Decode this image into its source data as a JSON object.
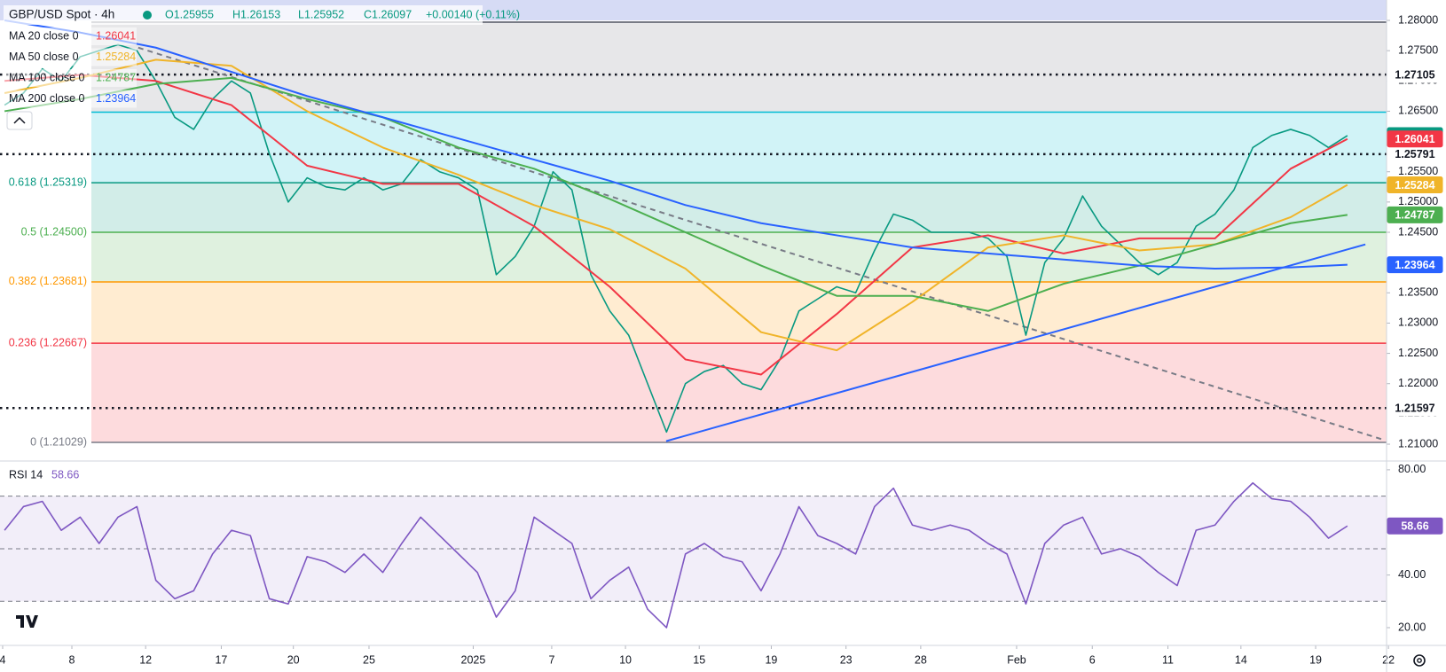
{
  "header": {
    "symbol": "GBP/USD Spot · 4h",
    "open": "O1.25955",
    "high": "H1.26153",
    "low": "L1.25952",
    "close": "C1.26097",
    "change": "+0.00140 (+0.11%)"
  },
  "chart_data": [
    {
      "type": "line",
      "xlim": [
        -0.24,
        73.07
      ],
      "ylim": [
        1.20722,
        1.28337
      ],
      "yticks": [
        {
          "value": 1.21,
          "label": "1.21000"
        },
        {
          "value": 1.215,
          "label": "1.21500"
        },
        {
          "value": 1.22,
          "label": "1.22000"
        },
        {
          "value": 1.225,
          "label": "1.22500"
        },
        {
          "value": 1.23,
          "label": "1.23000"
        },
        {
          "value": 1.235,
          "label": "1.23500"
        },
        {
          "value": 1.24,
          "label": "1.24000"
        },
        {
          "value": 1.245,
          "label": "1.24500"
        },
        {
          "value": 1.25,
          "label": "1.25000"
        },
        {
          "value": 1.255,
          "label": "1.25500"
        },
        {
          "value": 1.26,
          "label": "1.26000"
        },
        {
          "value": 1.265,
          "label": "1.26500"
        },
        {
          "value": 1.27,
          "label": "1.27000"
        },
        {
          "value": 1.275,
          "label": "1.27500"
        },
        {
          "value": 1.28,
          "label": "1.28000"
        }
      ],
      "series": [
        {
          "name": "GBP/USD Spot",
          "color": "#089981",
          "values": [
            1.266,
            1.268,
            1.272,
            1.27,
            1.274,
            1.275,
            1.276,
            1.275,
            1.27,
            1.264,
            1.262,
            1.267,
            1.27,
            1.268,
            1.258,
            1.25,
            1.254,
            1.2525,
            1.252,
            1.254,
            1.252,
            1.253,
            1.257,
            1.255,
            1.254,
            1.252,
            1.238,
            1.241,
            1.246,
            1.255,
            1.252,
            1.238,
            1.232,
            1.228,
            1.22,
            1.212,
            1.22,
            1.222,
            1.223,
            1.22,
            1.219,
            1.224,
            1.232,
            1.234,
            1.236,
            1.235,
            1.242,
            1.248,
            1.247,
            1.245,
            1.245,
            1.245,
            1.244,
            1.241,
            1.228,
            1.24,
            1.244,
            1.251,
            1.246,
            1.243,
            1.24,
            1.238,
            1.24,
            1.246,
            1.248,
            1.252,
            1.259,
            1.261,
            1.262,
            1.261,
            1.259,
            1.26097
          ]
        },
        {
          "name": "MA 20 close 0",
          "color": "#f23645",
          "x": [
            0,
            4,
            8,
            12,
            16,
            20,
            24,
            28,
            32,
            36,
            40,
            44,
            48,
            52,
            56,
            60,
            64,
            68,
            71
          ],
          "values": [
            1.27,
            1.271,
            1.27,
            1.266,
            1.256,
            1.253,
            1.253,
            1.246,
            1.236,
            1.224,
            1.2215,
            1.2315,
            1.2425,
            1.2445,
            1.2415,
            1.244,
            1.244,
            1.2555,
            1.26041
          ]
        },
        {
          "name": "MA 50 close 0",
          "color": "#f0b429",
          "x": [
            0,
            4,
            8,
            12,
            16,
            20,
            24,
            28,
            32,
            36,
            40,
            44,
            48,
            52,
            56,
            60,
            64,
            68,
            71
          ],
          "values": [
            1.268,
            1.2705,
            1.2735,
            1.2725,
            1.265,
            1.259,
            1.2545,
            1.2495,
            1.2455,
            1.239,
            1.2285,
            1.2255,
            1.2335,
            1.2425,
            1.2445,
            1.242,
            1.243,
            1.2475,
            1.25284
          ]
        },
        {
          "name": "MA 100 close 0",
          "color": "#4caf50",
          "x": [
            0,
            4,
            8,
            12,
            16,
            20,
            24,
            28,
            32,
            36,
            40,
            44,
            48,
            52,
            56,
            60,
            64,
            68,
            71
          ],
          "values": [
            1.265,
            1.267,
            1.2695,
            1.2705,
            1.267,
            1.264,
            1.259,
            1.2555,
            1.2505,
            1.245,
            1.2395,
            1.2345,
            1.2345,
            1.232,
            1.2365,
            1.2395,
            1.243,
            1.2465,
            1.24787
          ]
        },
        {
          "name": "MA 200 close 0",
          "color": "#2962ff",
          "x": [
            0,
            4,
            8,
            12,
            16,
            20,
            24,
            28,
            32,
            36,
            40,
            44,
            48,
            52,
            56,
            60,
            64,
            68,
            71
          ],
          "values": [
            1.28,
            1.278,
            1.2755,
            1.2715,
            1.2675,
            1.264,
            1.2605,
            1.257,
            1.2535,
            1.2495,
            1.2465,
            1.2445,
            1.2425,
            1.2415,
            1.2405,
            1.2395,
            1.239,
            1.2392,
            1.23964
          ]
        }
      ],
      "fib": {
        "levels": [
          1.21029,
          1.22667,
          1.23681,
          1.245,
          1.25319,
          1.26485,
          1.27971
        ],
        "labels": [
          "0 (1.21029)",
          "0.236 (1.22667)",
          "0.382 (1.23681)",
          "0.5 (1.24500)",
          "0.618 (1.25319)",
          null,
          null
        ],
        "colors": [
          "#787b86",
          "#f23645",
          "#ff9800",
          "#4caf50",
          "#089981",
          "#00bcd4",
          "#787b86"
        ]
      },
      "hlines": {
        "values": [
          1.27105,
          1.25791,
          1.21597
        ],
        "color": "#131722"
      },
      "trendlines": [
        {
          "x": [
            7.07,
            72.93
          ],
          "values": [
            1.2755,
            1.2107
          ],
          "color": "#787b86",
          "dashed": true
        },
        {
          "x": [
            34.98,
            71.95
          ],
          "values": [
            1.2105,
            1.243
          ],
          "color": "#2962ff",
          "dashed": false
        }
      ]
    },
    {
      "type": "line",
      "xlim": [
        -0.24,
        73.07
      ],
      "xticks": [
        {
          "value": -0.1,
          "label": "4"
        },
        {
          "value": 3.56,
          "label": "8"
        },
        {
          "value": 7.46,
          "label": "12"
        },
        {
          "value": 11.46,
          "label": "17"
        },
        {
          "value": 15.27,
          "label": "20"
        },
        {
          "value": 19.27,
          "label": "25"
        },
        {
          "value": 24.78,
          "label": "2025"
        },
        {
          "value": 28.93,
          "label": "7"
        },
        {
          "value": 32.83,
          "label": "10"
        },
        {
          "value": 36.73,
          "label": "15"
        },
        {
          "value": 40.54,
          "label": "19"
        },
        {
          "value": 44.49,
          "label": "23"
        },
        {
          "value": 48.44,
          "label": "28"
        },
        {
          "value": 53.51,
          "label": "Feb"
        },
        {
          "value": 57.51,
          "label": "6"
        },
        {
          "value": 61.51,
          "label": "11"
        },
        {
          "value": 65.37,
          "label": "14"
        },
        {
          "value": 69.32,
          "label": "19"
        },
        {
          "value": 73.17,
          "label": "22"
        }
      ],
      "ylim": [
        14.6,
        83.0
      ],
      "yticks": [
        {
          "value": 20,
          "label": "20.00"
        },
        {
          "value": 40,
          "label": "40.00"
        },
        {
          "value": 80,
          "label": "80.00"
        }
      ],
      "levels": [
        30,
        50,
        70
      ],
      "band": [
        30,
        70
      ],
      "series": [
        {
          "name": "RSI 14",
          "color": "#7e57c2",
          "values": [
            57,
            66,
            68,
            57,
            62,
            52,
            62,
            66,
            38,
            31,
            34,
            48,
            57,
            55,
            31,
            29,
            47,
            45,
            41,
            48,
            41,
            52,
            62,
            55,
            48,
            41,
            24,
            34,
            62,
            57,
            52,
            31,
            38,
            43,
            27,
            20,
            48,
            52,
            47,
            45,
            34,
            48,
            66,
            55,
            52,
            48,
            66,
            73,
            59,
            57,
            59,
            57,
            52,
            48,
            29,
            52,
            59,
            62,
            48,
            50,
            47,
            41,
            36,
            57,
            59,
            68,
            75,
            69,
            68,
            62,
            54,
            58.66
          ]
        }
      ]
    }
  ]
}
